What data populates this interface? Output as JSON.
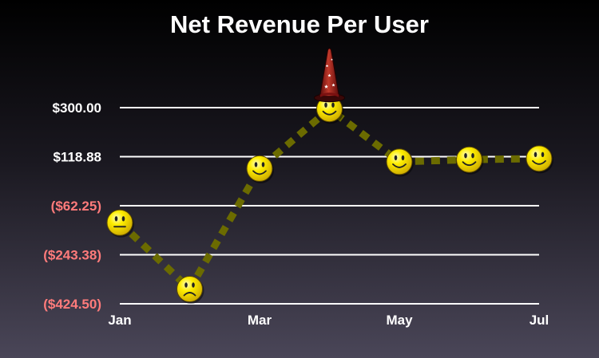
{
  "chart_data": {
    "type": "line",
    "title": "Net Revenue Per User",
    "xlabel": "",
    "ylabel": "",
    "x_tick_labels": [
      "Jan",
      "Mar",
      "May",
      "Jul"
    ],
    "y_tick_labels": [
      "$300.00",
      "$118.88",
      "($62.25)",
      "($243.38)",
      "($424.50)"
    ],
    "y_ticks": [
      300.0,
      118.88,
      -62.25,
      -243.38,
      -424.5
    ],
    "ylim": [
      -424.5,
      300.0
    ],
    "grid": true,
    "legend": "none",
    "series": [
      {
        "x": [
          1,
          2,
          3,
          4,
          5,
          6,
          7
        ],
        "values": [
          -125,
          -370,
          75,
          295,
          100,
          108,
          112
        ],
        "marker_mood": [
          "neutral",
          "sad",
          "happy",
          "happy",
          "happy",
          "happy",
          "happy"
        ]
      }
    ],
    "colors": {
      "line": "#6b6b00",
      "grid": "#ffffff",
      "positive_tick": "#ffffff",
      "negative_tick": "#ff7b7b",
      "marker_fill": "#ffee00"
    },
    "annotations": [
      {
        "kind": "wizard-hat-icon",
        "at_point_index": 3
      }
    ]
  }
}
